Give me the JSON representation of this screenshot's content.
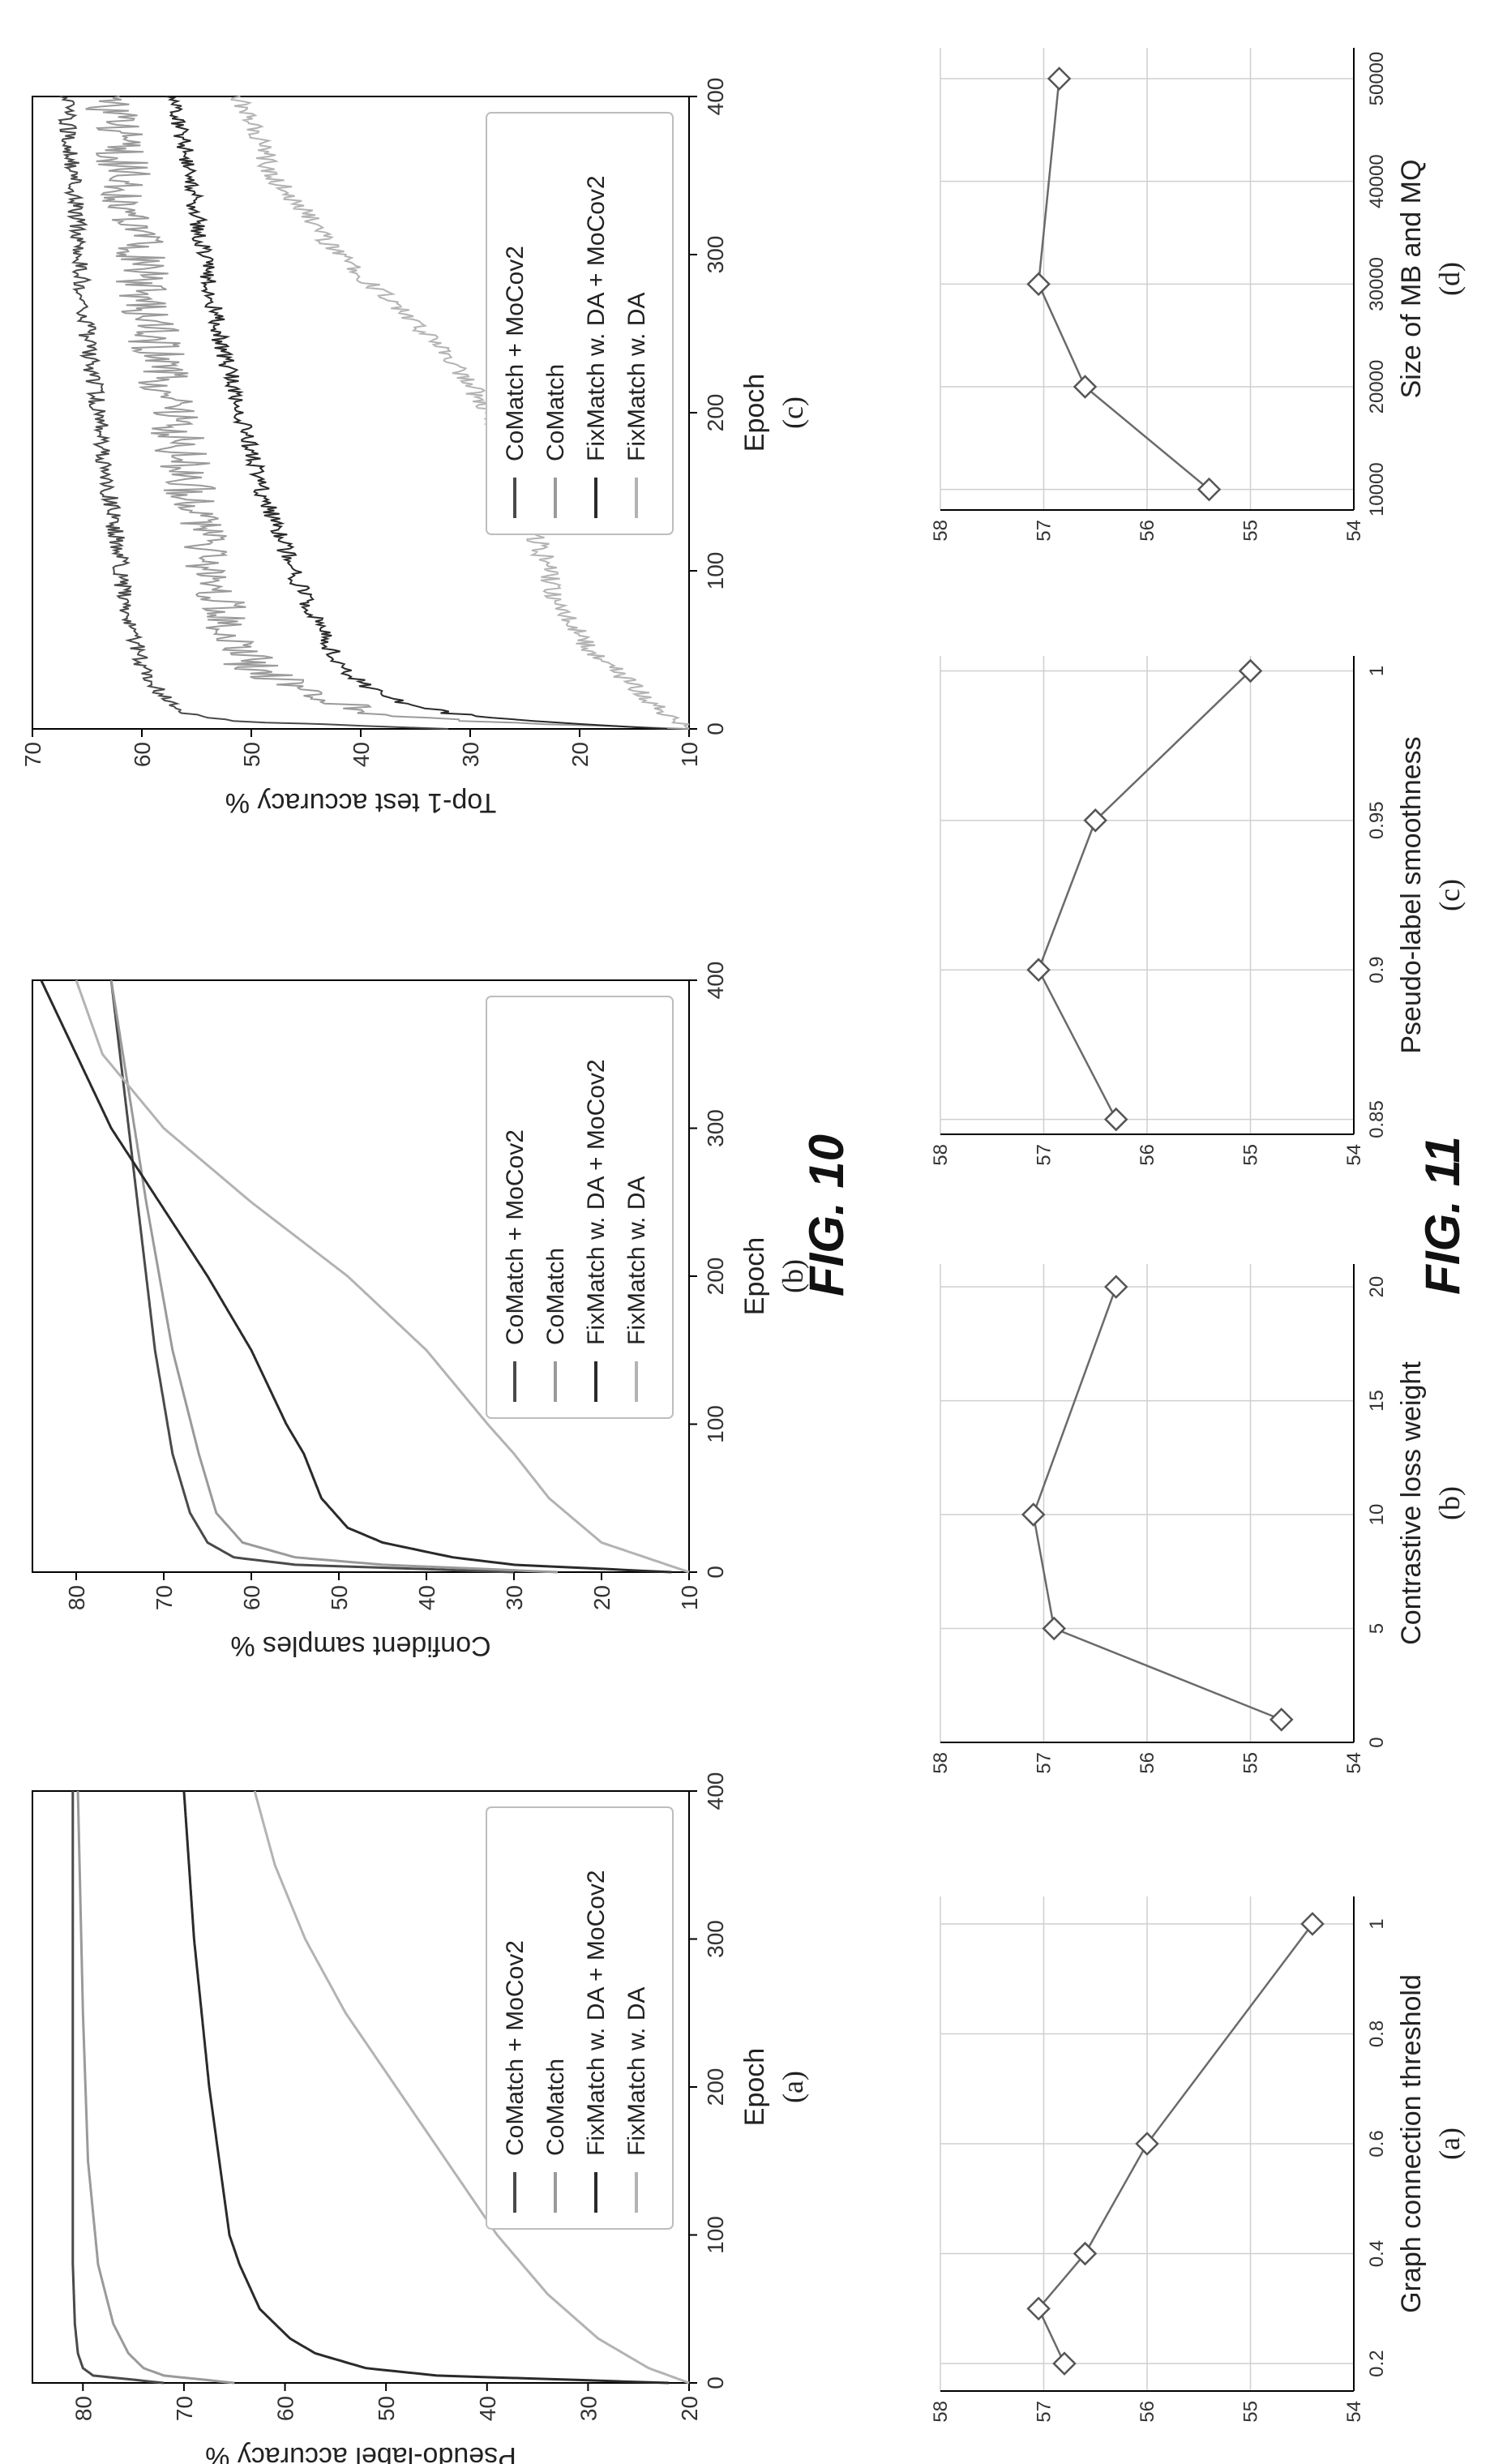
{
  "figures": {
    "fig10": "FIG. 10",
    "fig11": "FIG. 11"
  },
  "colors": {
    "comatch_mocov2": "#4a4a4a",
    "comatch": "#9a9a9a",
    "fixmatch_mocov2": "#2a2a2a",
    "fixmatch": "#b3b3b3",
    "marker_stroke": "#555555"
  },
  "chart_data": [
    {
      "type": "line",
      "panel": "(a)",
      "xlabel": "Epoch",
      "ylabel": "Pseudo-label accuracy %",
      "xlim": [
        0,
        400
      ],
      "ylim": [
        20,
        85
      ],
      "xticks": [
        0,
        100,
        200,
        300,
        400
      ],
      "yticks": [
        20,
        30,
        40,
        50,
        60,
        70,
        80
      ],
      "legend_position": "lower-right",
      "series": [
        {
          "name": "CoMatch + MoCov2",
          "x": [
            0,
            5,
            10,
            20,
            40,
            80,
            150,
            250,
            400
          ],
          "y": [
            72,
            79,
            80,
            80.5,
            80.8,
            81,
            81,
            81,
            81
          ]
        },
        {
          "name": "CoMatch",
          "x": [
            0,
            5,
            10,
            20,
            40,
            80,
            150,
            250,
            400
          ],
          "y": [
            65,
            72,
            74,
            75.5,
            77,
            78.5,
            79.5,
            80,
            80.5
          ]
        },
        {
          "name": "FixMatch w. DA + MoCov2",
          "x": [
            0,
            5,
            10,
            20,
            30,
            50,
            80,
            100,
            150,
            200,
            300,
            400
          ],
          "y": [
            22,
            45,
            52,
            57,
            59.5,
            62.5,
            64.5,
            65.5,
            66.5,
            67.5,
            69,
            70
          ]
        },
        {
          "name": "FixMatch w. DA",
          "x": [
            0,
            10,
            30,
            60,
            100,
            150,
            200,
            250,
            300,
            350,
            400
          ],
          "y": [
            20,
            24,
            29,
            34,
            39,
            44,
            49,
            54,
            58,
            61,
            63
          ]
        }
      ]
    },
    {
      "type": "line",
      "panel": "(b)",
      "xlabel": "Epoch",
      "ylabel": "Confident samples %",
      "xlim": [
        0,
        400
      ],
      "ylim": [
        10,
        85
      ],
      "xticks": [
        0,
        100,
        200,
        300,
        400
      ],
      "yticks": [
        10,
        20,
        30,
        40,
        50,
        60,
        70,
        80
      ],
      "legend_position": "lower-right",
      "series": [
        {
          "name": "CoMatch + MoCov2",
          "x": [
            0,
            5,
            10,
            20,
            40,
            80,
            150,
            250,
            400
          ],
          "y": [
            30,
            55,
            62,
            65,
            67,
            69,
            71,
            73,
            76
          ]
        },
        {
          "name": "CoMatch",
          "x": [
            0,
            5,
            10,
            20,
            40,
            80,
            150,
            250,
            400
          ],
          "y": [
            25,
            45,
            55,
            61,
            64,
            66,
            69,
            72,
            76
          ]
        },
        {
          "name": "FixMatch w. DA + MoCov2",
          "x": [
            0,
            5,
            10,
            20,
            30,
            50,
            80,
            100,
            150,
            200,
            300,
            400
          ],
          "y": [
            12,
            30,
            37,
            45,
            49,
            52,
            54,
            56,
            60,
            65,
            76,
            84
          ]
        },
        {
          "name": "FixMatch w. DA",
          "x": [
            0,
            20,
            50,
            80,
            100,
            150,
            200,
            250,
            300,
            350,
            400
          ],
          "y": [
            10,
            20,
            26,
            30,
            33,
            40,
            49,
            60,
            70,
            77,
            80
          ]
        }
      ]
    },
    {
      "type": "line",
      "panel": "(c)",
      "xlabel": "Epoch",
      "ylabel": "Top-1 test accuracy %",
      "xlim": [
        0,
        400
      ],
      "ylim": [
        10,
        70
      ],
      "xticks": [
        0,
        100,
        200,
        300,
        400
      ],
      "yticks": [
        10,
        20,
        30,
        40,
        50,
        60,
        70
      ],
      "legend_position": "lower-right",
      "series": [
        {
          "name": "CoMatch + MoCov2",
          "x": [
            0,
            5,
            10,
            20,
            40,
            80,
            150,
            250,
            400
          ],
          "y": [
            32,
            52,
            56,
            58,
            60,
            61.5,
            63,
            65,
            67
          ]
        },
        {
          "name": "CoMatch",
          "x": [
            0,
            5,
            10,
            20,
            40,
            80,
            150,
            250,
            400
          ],
          "y": [
            10,
            30,
            38,
            45,
            50,
            53,
            55.5,
            59,
            63
          ]
        },
        {
          "name": "FixMatch w. DA + MoCov2",
          "x": [
            0,
            5,
            10,
            20,
            40,
            80,
            150,
            250,
            400
          ],
          "y": [
            12,
            25,
            32,
            38,
            42,
            45,
            49,
            53,
            57
          ]
        },
        {
          "name": "FixMatch w. DA",
          "x": [
            0,
            20,
            50,
            80,
            100,
            150,
            200,
            250,
            300,
            350,
            400
          ],
          "y": [
            10,
            14,
            19,
            22,
            23,
            25,
            28,
            34,
            42,
            48,
            51
          ]
        }
      ]
    },
    {
      "type": "line",
      "panel": "(a)",
      "xlabel": "Graph connection threshold",
      "xlim": [
        0.15,
        1.05
      ],
      "ylim": [
        54,
        58
      ],
      "xticks": [
        0.2,
        0.4,
        0.6,
        0.8,
        1
      ],
      "xtick_labels": [
        "0.2",
        "0.4",
        "0.6",
        "0.8",
        "1"
      ],
      "yticks": [
        54,
        55,
        56,
        57,
        58
      ],
      "x": [
        0.2,
        0.3,
        0.4,
        0.6,
        1.0
      ],
      "y": [
        56.8,
        57.05,
        56.6,
        56.0,
        54.4
      ]
    },
    {
      "type": "line",
      "panel": "(b)",
      "xlabel": "Contrastive loss weight",
      "xlim": [
        0,
        21
      ],
      "ylim": [
        54,
        58
      ],
      "xticks": [
        0,
        5,
        10,
        15,
        20
      ],
      "xtick_labels": [
        "0",
        "5",
        "10",
        "15",
        "20"
      ],
      "yticks": [
        54,
        55,
        56,
        57,
        58
      ],
      "x": [
        1,
        5,
        10,
        20
      ],
      "y": [
        54.7,
        56.9,
        57.1,
        56.3
      ]
    },
    {
      "type": "line",
      "panel": "(c)",
      "xlabel": "Pseudo-label smoothness",
      "xlim": [
        0.845,
        1.005
      ],
      "ylim": [
        54,
        58
      ],
      "xticks": [
        0.85,
        0.9,
        0.95,
        1
      ],
      "xtick_labels": [
        "0.85",
        "0.9",
        "0.95",
        "1"
      ],
      "yticks": [
        54,
        55,
        56,
        57,
        58
      ],
      "x": [
        0.85,
        0.9,
        0.95,
        1.0
      ],
      "y": [
        56.3,
        57.05,
        56.5,
        55.0
      ]
    },
    {
      "type": "line",
      "panel": "(d)",
      "xlabel": "Size of MB and MQ",
      "xlim": [
        8000,
        53000
      ],
      "ylim": [
        54,
        58
      ],
      "xticks": [
        10000,
        20000,
        30000,
        40000,
        50000
      ],
      "xtick_labels": [
        "10000",
        "20000",
        "30000",
        "40000",
        "50000"
      ],
      "yticks": [
        54,
        55,
        56,
        57,
        58
      ],
      "x": [
        10000,
        20000,
        30000,
        50000
      ],
      "y": [
        55.4,
        56.6,
        57.05,
        56.85
      ]
    }
  ]
}
